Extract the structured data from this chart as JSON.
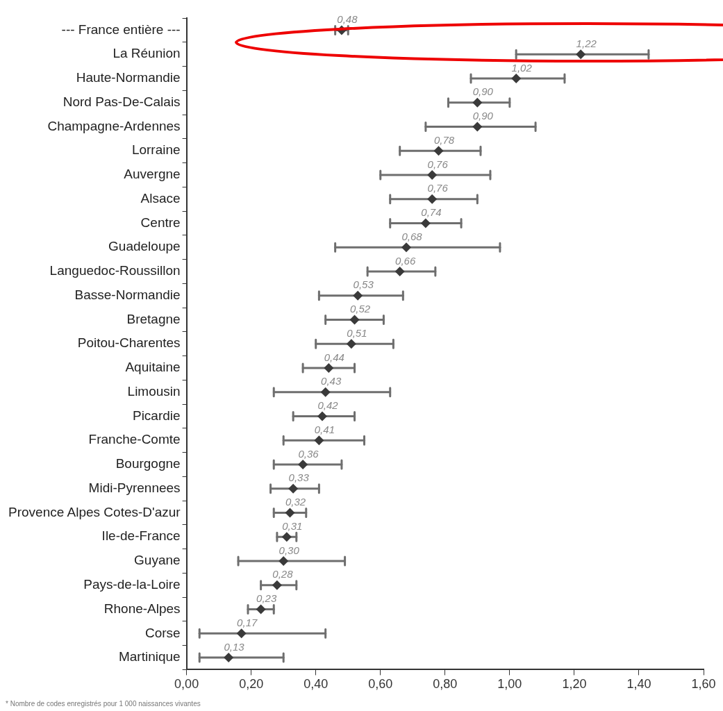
{
  "chart_data": {
    "type": "scatter",
    "orientation": "horizontal",
    "categories": [
      "--- France entière ---",
      "La Réunion",
      "Haute-Normandie",
      "Nord Pas-De-Calais",
      "Champagne-Ardennes",
      "Lorraine",
      "Auvergne",
      "Alsace",
      "Centre",
      "Guadeloupe",
      "Languedoc-Roussillon",
      "Basse-Normandie",
      "Bretagne",
      "Poitou-Charentes",
      "Aquitaine",
      "Limousin",
      "Picardie",
      "Franche-Comte",
      "Bourgogne",
      "Midi-Pyrennees",
      "Provence Alpes Cotes-D'azur",
      "Ile-de-France",
      "Guyane",
      "Pays-de-la-Loire",
      "Rhone-Alpes",
      "Corse",
      "Martinique"
    ],
    "values": [
      0.48,
      1.22,
      1.02,
      0.9,
      0.9,
      0.78,
      0.76,
      0.76,
      0.74,
      0.68,
      0.66,
      0.53,
      0.52,
      0.51,
      0.44,
      0.43,
      0.42,
      0.41,
      0.36,
      0.33,
      0.32,
      0.31,
      0.3,
      0.28,
      0.23,
      0.17,
      0.13
    ],
    "value_labels": [
      "0,48",
      "1,22",
      "1,02",
      "0,90",
      "0,90",
      "0,78",
      "0,76",
      "0,76",
      "0,74",
      "0,68",
      "0,66",
      "0,53",
      "0,52",
      "0,51",
      "0,44",
      "0,43",
      "0,42",
      "0,41",
      "0,36",
      "0,33",
      "0,32",
      "0,31",
      "0,30",
      "0,28",
      "0,23",
      "0,17",
      "0,13"
    ],
    "errors": [
      [
        0.46,
        0.5
      ],
      [
        1.02,
        1.43
      ],
      [
        0.88,
        1.17
      ],
      [
        0.81,
        1.0
      ],
      [
        0.74,
        1.08
      ],
      [
        0.66,
        0.91
      ],
      [
        0.6,
        0.94
      ],
      [
        0.63,
        0.9
      ],
      [
        0.63,
        0.85
      ],
      [
        0.46,
        0.97
      ],
      [
        0.56,
        0.77
      ],
      [
        0.41,
        0.67
      ],
      [
        0.43,
        0.61
      ],
      [
        0.4,
        0.64
      ],
      [
        0.36,
        0.52
      ],
      [
        0.27,
        0.63
      ],
      [
        0.33,
        0.52
      ],
      [
        0.3,
        0.55
      ],
      [
        0.27,
        0.48
      ],
      [
        0.26,
        0.41
      ],
      [
        0.27,
        0.37
      ],
      [
        0.28,
        0.34
      ],
      [
        0.16,
        0.49
      ],
      [
        0.23,
        0.34
      ],
      [
        0.19,
        0.27
      ],
      [
        0.04,
        0.43
      ],
      [
        0.04,
        0.3
      ]
    ],
    "color": "#3a3a3a",
    "marker": "diamond",
    "xlim": [
      0,
      1.6
    ],
    "xticks": [
      {
        "value": 0,
        "label": "0,00"
      },
      {
        "value": 0.2,
        "label": "0,20"
      },
      {
        "value": 0.4,
        "label": "0,40"
      },
      {
        "value": 0.6,
        "label": "0,60"
      },
      {
        "value": 0.8,
        "label": "0,80"
      },
      {
        "value": 1.0,
        "label": "1,00"
      },
      {
        "value": 1.2,
        "label": "1,20"
      },
      {
        "value": 1.4,
        "label": "1,40"
      },
      {
        "value": 1.6,
        "label": "1,60"
      }
    ],
    "grid": false,
    "legend": false,
    "annotations": [
      "* Nombre de codes enregistrés pour 1 000 naissances vivantes"
    ]
  }
}
